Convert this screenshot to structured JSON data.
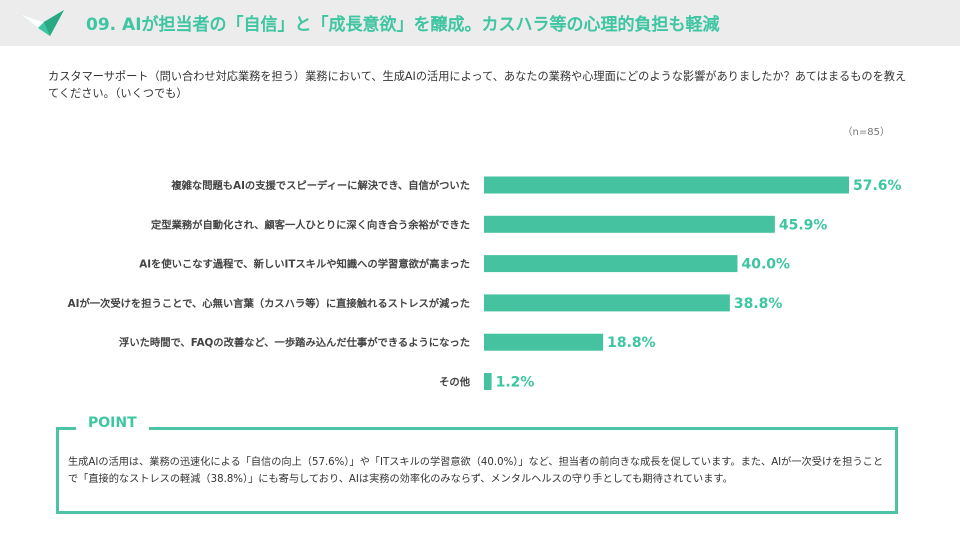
{
  "header": {
    "title": "09. AIが担当者の「自信」と「成長意欲」を醸成。カスハラ等の心理的負担も軽減"
  },
  "question": "カスタマーサポート（問い合わせ対応業務を担う）業務において、生成AIの活用によって、あなたの業務や心理面にどのような影響がありましたか？あてはまるものを教えてください。（いくつでも）",
  "sample_size": "（n=85）",
  "colors": {
    "accent": "#3ec5a2",
    "bar": "#45c3a0",
    "border": "#4cc3a4"
  },
  "chart_data": {
    "type": "bar",
    "orientation": "horizontal",
    "categories": [
      "複雑な問題もAIの支援でスピーディーに解決でき、自信がついた",
      "定型業務が自動化され、顧客一人ひとりに深く向き合う余裕ができた",
      "AIを使いこなす過程で、新しいITスキルや知識への学習意欲が高まった",
      "AIが一次受けを担うことで、心無い言葉（カスハラ等）に直接触れるストレスが減った",
      "浮いた時間で、FAQの改善など、一歩踏み込んだ仕事ができるようになった",
      "その他"
    ],
    "values": [
      57.6,
      45.9,
      40.0,
      38.8,
      18.8,
      1.2
    ],
    "value_labels": [
      "57.6%",
      "45.9%",
      "40.0%",
      "38.8%",
      "18.8%",
      "1.2%"
    ],
    "unit": "%",
    "xlim": [
      0,
      100
    ],
    "grid": false
  },
  "point": {
    "title": "POINT",
    "text": "生成AIの活用は、業務の迅速化による「自信の向上（57.6%）」や「ITスキルの学習意欲（40.0%）」など、担当者の前向きな成長を促しています。また、AIが一次受けを担うことで「直接的なストレスの軽減（38.8%）」にも寄与しており、AIは実務の効率化のみならず、メンタルヘルスの守り手としても期待されています。"
  }
}
